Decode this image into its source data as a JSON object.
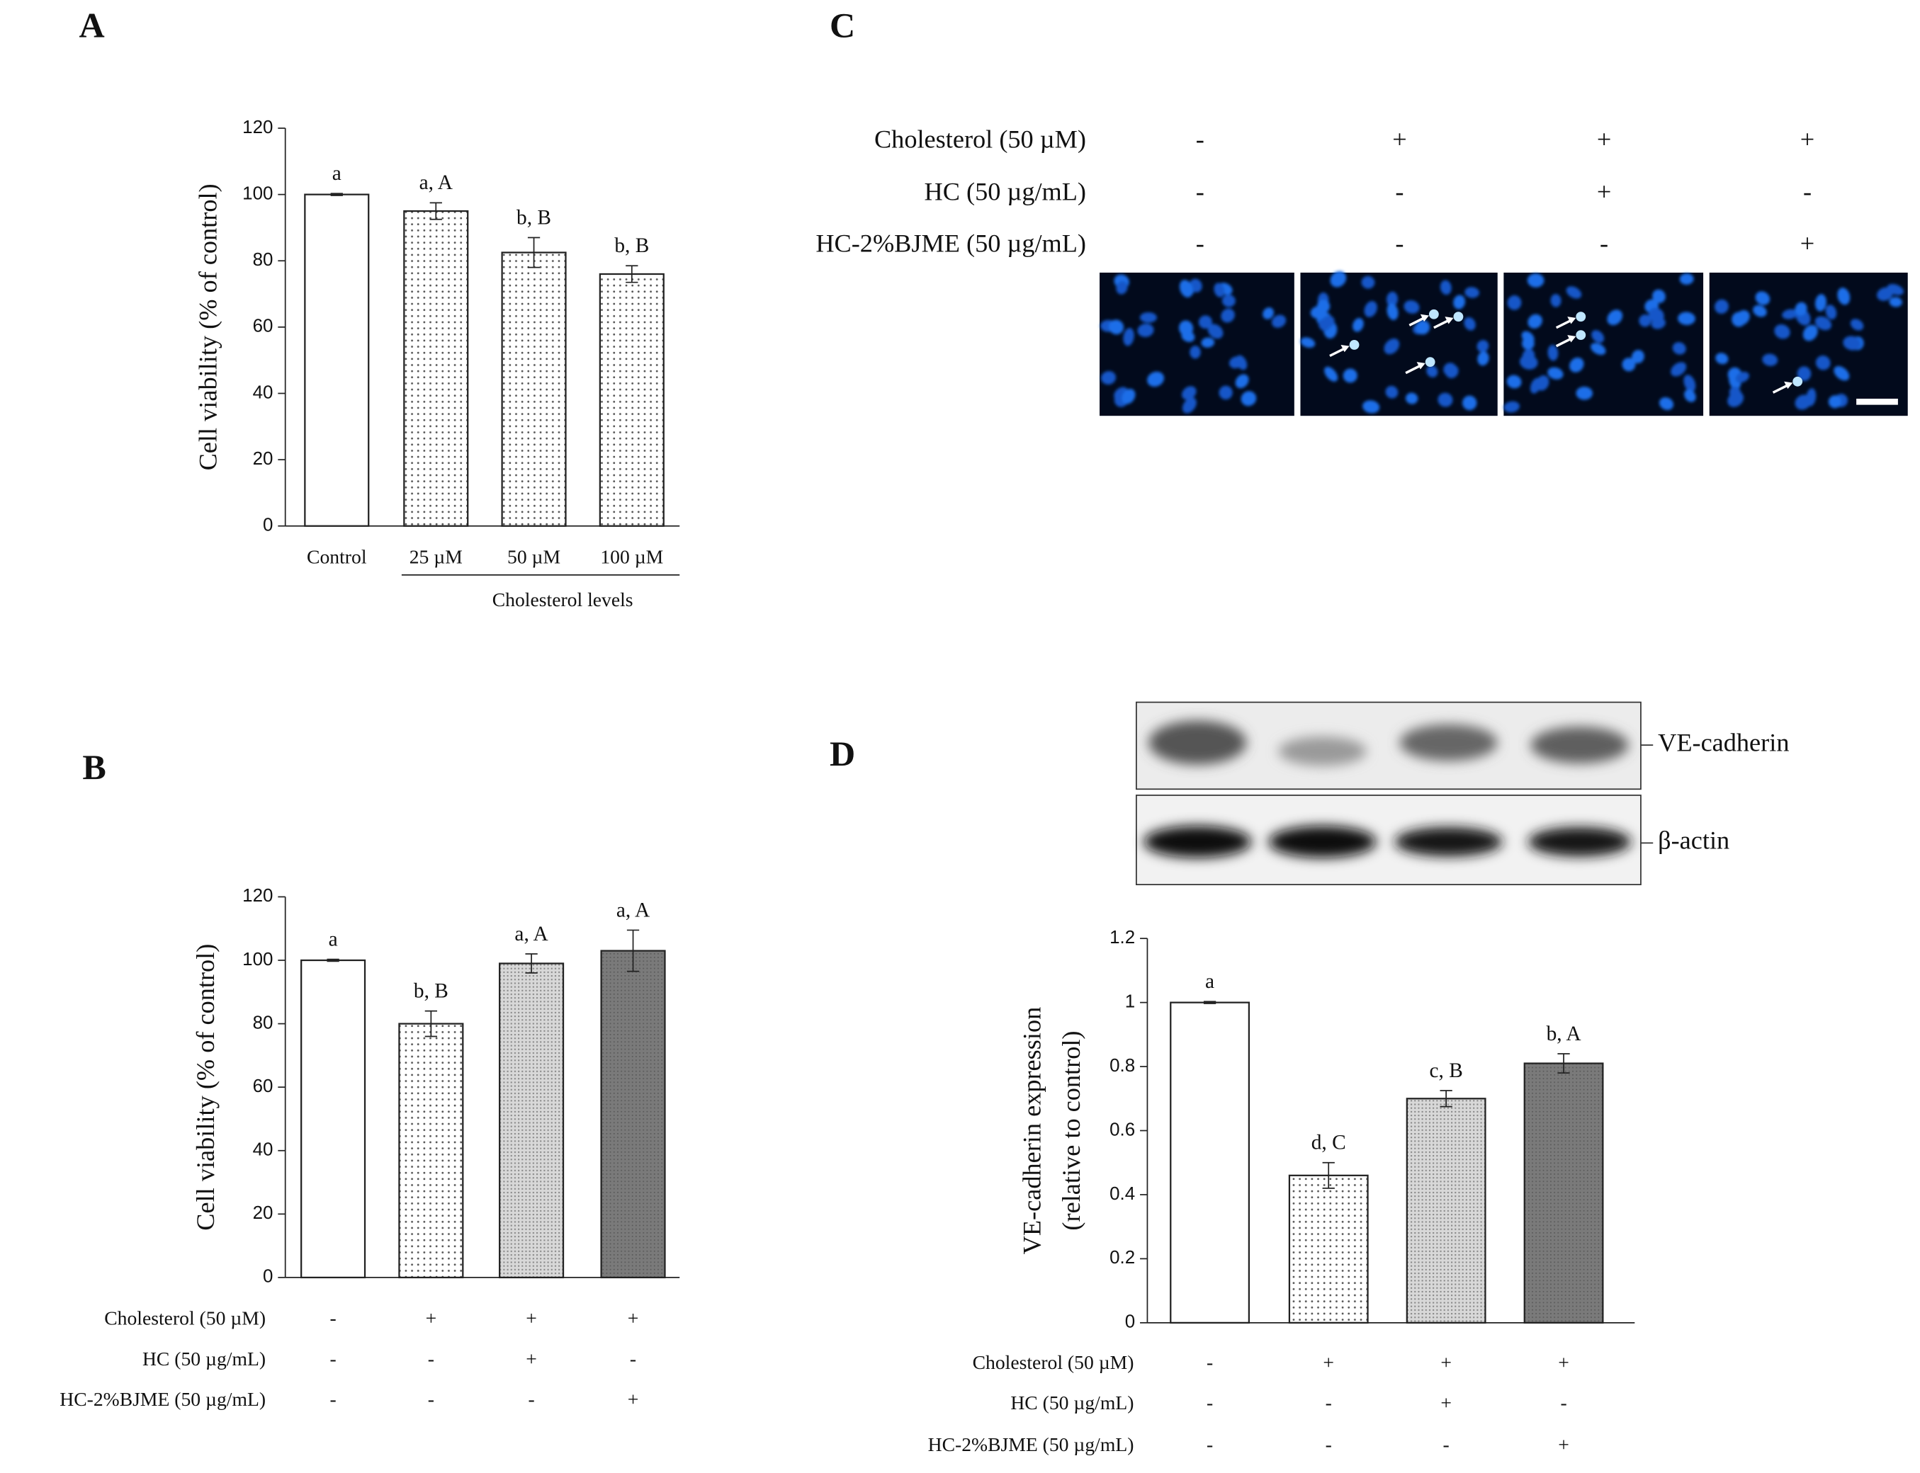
{
  "chart_data": [
    {
      "type": "bar",
      "panel": "A",
      "y_label": "Cell viability (% of control)",
      "x_label": "Cholesterol levels",
      "categories": [
        "Control",
        "25 µM",
        "50 µM",
        "100 µM"
      ],
      "values": [
        100,
        95,
        82.5,
        76
      ],
      "errors": [
        0.3,
        2.5,
        4.5,
        2.5
      ],
      "annotations": [
        "a",
        "a, A",
        "b, B",
        "b, B"
      ],
      "patterns": [
        "white",
        "dots",
        "dots",
        "dots"
      ],
      "ylim": [
        0,
        120
      ],
      "yticks": [
        0,
        20,
        40,
        60,
        80,
        100,
        120
      ]
    },
    {
      "type": "bar",
      "panel": "B",
      "y_label": "Cell viability (% of control)",
      "values": [
        100,
        80,
        99,
        103
      ],
      "errors": [
        0.3,
        4,
        3,
        6.5
      ],
      "annotations": [
        "a",
        "b, B",
        "a, A",
        "a, A"
      ],
      "patterns": [
        "white",
        "dots",
        "fine",
        "gray"
      ],
      "conditions": [
        {
          "name": "Cholesterol (50 µM)",
          "values": [
            "-",
            "+",
            "+",
            "+"
          ]
        },
        {
          "name": "HC (50 µg/mL)",
          "values": [
            "-",
            "-",
            "+",
            "-"
          ]
        },
        {
          "name": "HC-2%BJME (50 µg/mL)",
          "values": [
            "-",
            "-",
            "-",
            "+"
          ]
        }
      ],
      "ylim": [
        0,
        120
      ],
      "yticks": [
        0,
        20,
        40,
        60,
        80,
        100,
        120
      ]
    },
    {
      "type": "bar",
      "panel": "D",
      "y_label": [
        "VE-cadherin expression",
        "(relative to control)"
      ],
      "blot_labels": [
        "VE-cadherin",
        "β-actin"
      ],
      "values": [
        1.0,
        0.46,
        0.7,
        0.81
      ],
      "errors": [
        0.003,
        0.04,
        0.025,
        0.03
      ],
      "annotations": [
        "a",
        "d, C",
        "c, B",
        "b, A"
      ],
      "patterns": [
        "white",
        "dots",
        "fine",
        "gray"
      ],
      "conditions": [
        {
          "name": "Cholesterol (50 µM)",
          "values": [
            "-",
            "+",
            "+",
            "+"
          ]
        },
        {
          "name": "HC (50 µg/mL)",
          "values": [
            "-",
            "-",
            "+",
            "-"
          ]
        },
        {
          "name": "HC-2%BJME (50 µg/mL)",
          "values": [
            "-",
            "-",
            "-",
            "+"
          ]
        }
      ],
      "ylim": [
        0,
        1.2
      ],
      "yticks": [
        0,
        0.2,
        0.4,
        0.6,
        0.8,
        1,
        1.2
      ]
    }
  ],
  "image_panel": {
    "panel": "C",
    "conditions": [
      {
        "name": "Cholesterol (50 µM)",
        "values": [
          "-",
          "+",
          "+",
          "+"
        ]
      },
      {
        "name": "HC (50 µg/mL)",
        "values": [
          "-",
          "-",
          "+",
          "-"
        ]
      },
      {
        "name": "HC-2%BJME (50 µg/mL)",
        "values": [
          "-",
          "-",
          "-",
          "+"
        ]
      }
    ]
  }
}
